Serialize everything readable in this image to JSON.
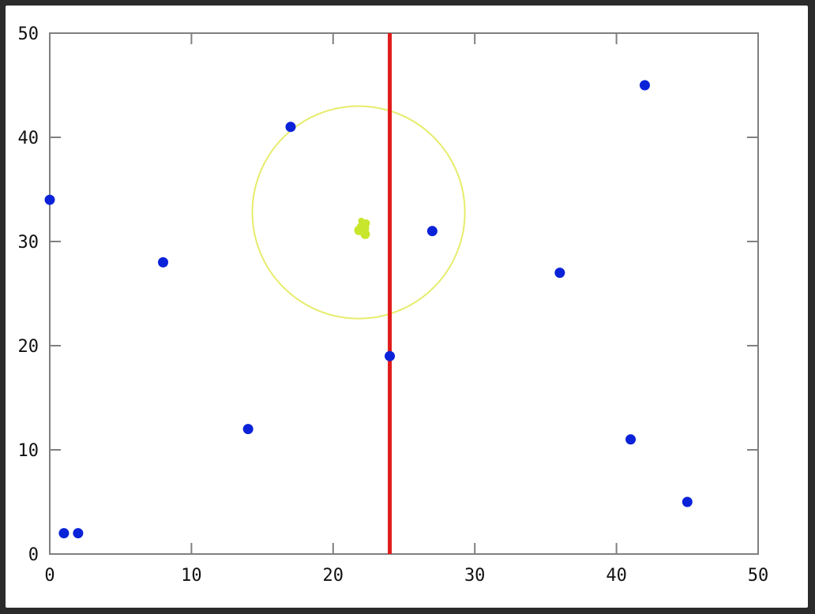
{
  "chart_data": {
    "type": "scatter",
    "title": "",
    "xlabel": "",
    "ylabel": "",
    "xlim": [
      0,
      50
    ],
    "ylim": [
      0,
      50
    ],
    "xticks": [
      0,
      10,
      20,
      30,
      40,
      50
    ],
    "yticks": [
      0,
      10,
      20,
      30,
      40,
      50
    ],
    "grid": false,
    "points": [
      {
        "x": 0,
        "y": 34
      },
      {
        "x": 1,
        "y": 2
      },
      {
        "x": 2,
        "y": 2
      },
      {
        "x": 8,
        "y": 28
      },
      {
        "x": 14,
        "y": 12
      },
      {
        "x": 17,
        "y": 41
      },
      {
        "x": 24,
        "y": 19
      },
      {
        "x": 27,
        "y": 31
      },
      {
        "x": 36,
        "y": 27
      },
      {
        "x": 41,
        "y": 11
      },
      {
        "x": 42,
        "y": 45
      },
      {
        "x": 45,
        "y": 5
      }
    ],
    "vertical_line": {
      "x": 24
    },
    "query_point": {
      "x": 22.1,
      "y": 31.3
    },
    "circle": {
      "cx": 21.8,
      "cy": 32.8,
      "r": 7.5
    },
    "colors": {
      "points": "#0a22d8",
      "vertical_line": "#e11b1b",
      "circle": "#e6ec6a",
      "query_point": "#c8e62c",
      "axes": "#808080",
      "background": "#ffffff"
    }
  }
}
